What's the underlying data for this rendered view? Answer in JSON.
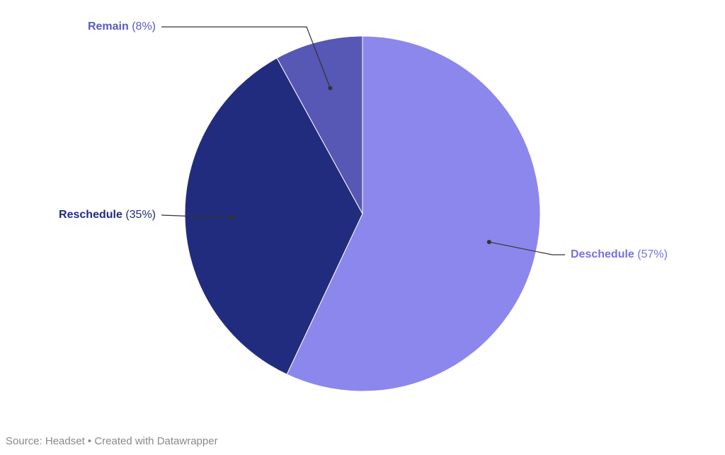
{
  "chart_data": {
    "type": "pie",
    "categories": [
      "Deschedule",
      "Reschedule",
      "Remain"
    ],
    "values": [
      57,
      35,
      8
    ],
    "value_labels": [
      "(57%)",
      "(35%)",
      "(8%)"
    ],
    "colors": [
      "#8b87ec",
      "#222c7e",
      "#5757b5"
    ],
    "label_colors": [
      "#7672dc",
      "#222c7e",
      "#5a58c0"
    ],
    "source": "Source: Headset • Created with Datawrapper"
  }
}
